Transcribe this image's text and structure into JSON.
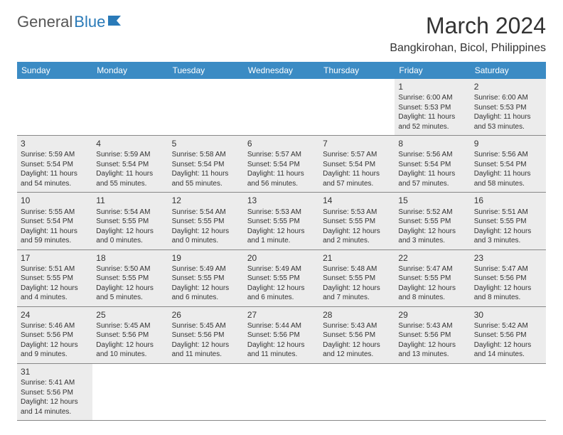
{
  "logo": {
    "general": "General",
    "blue": "Blue"
  },
  "title": {
    "month": "March 2024",
    "location": "Bangkirohan, Bicol, Philippines"
  },
  "colors": {
    "header_bg": "#3b8bc4",
    "header_fg": "#ffffff",
    "cell_bg": "#ececec",
    "text": "#333333",
    "logo_grey": "#555555",
    "logo_blue": "#2a7ab8",
    "border": "#888888"
  },
  "columns": [
    "Sunday",
    "Monday",
    "Tuesday",
    "Wednesday",
    "Thursday",
    "Friday",
    "Saturday"
  ],
  "rows": [
    [
      null,
      null,
      null,
      null,
      null,
      {
        "n": "1",
        "sr": "Sunrise: 6:00 AM",
        "ss": "Sunset: 5:53 PM",
        "dl": "Daylight: 11 hours and 52 minutes."
      },
      {
        "n": "2",
        "sr": "Sunrise: 6:00 AM",
        "ss": "Sunset: 5:53 PM",
        "dl": "Daylight: 11 hours and 53 minutes."
      }
    ],
    [
      {
        "n": "3",
        "sr": "Sunrise: 5:59 AM",
        "ss": "Sunset: 5:54 PM",
        "dl": "Daylight: 11 hours and 54 minutes."
      },
      {
        "n": "4",
        "sr": "Sunrise: 5:59 AM",
        "ss": "Sunset: 5:54 PM",
        "dl": "Daylight: 11 hours and 55 minutes."
      },
      {
        "n": "5",
        "sr": "Sunrise: 5:58 AM",
        "ss": "Sunset: 5:54 PM",
        "dl": "Daylight: 11 hours and 55 minutes."
      },
      {
        "n": "6",
        "sr": "Sunrise: 5:57 AM",
        "ss": "Sunset: 5:54 PM",
        "dl": "Daylight: 11 hours and 56 minutes."
      },
      {
        "n": "7",
        "sr": "Sunrise: 5:57 AM",
        "ss": "Sunset: 5:54 PM",
        "dl": "Daylight: 11 hours and 57 minutes."
      },
      {
        "n": "8",
        "sr": "Sunrise: 5:56 AM",
        "ss": "Sunset: 5:54 PM",
        "dl": "Daylight: 11 hours and 57 minutes."
      },
      {
        "n": "9",
        "sr": "Sunrise: 5:56 AM",
        "ss": "Sunset: 5:54 PM",
        "dl": "Daylight: 11 hours and 58 minutes."
      }
    ],
    [
      {
        "n": "10",
        "sr": "Sunrise: 5:55 AM",
        "ss": "Sunset: 5:54 PM",
        "dl": "Daylight: 11 hours and 59 minutes."
      },
      {
        "n": "11",
        "sr": "Sunrise: 5:54 AM",
        "ss": "Sunset: 5:55 PM",
        "dl": "Daylight: 12 hours and 0 minutes."
      },
      {
        "n": "12",
        "sr": "Sunrise: 5:54 AM",
        "ss": "Sunset: 5:55 PM",
        "dl": "Daylight: 12 hours and 0 minutes."
      },
      {
        "n": "13",
        "sr": "Sunrise: 5:53 AM",
        "ss": "Sunset: 5:55 PM",
        "dl": "Daylight: 12 hours and 1 minute."
      },
      {
        "n": "14",
        "sr": "Sunrise: 5:53 AM",
        "ss": "Sunset: 5:55 PM",
        "dl": "Daylight: 12 hours and 2 minutes."
      },
      {
        "n": "15",
        "sr": "Sunrise: 5:52 AM",
        "ss": "Sunset: 5:55 PM",
        "dl": "Daylight: 12 hours and 3 minutes."
      },
      {
        "n": "16",
        "sr": "Sunrise: 5:51 AM",
        "ss": "Sunset: 5:55 PM",
        "dl": "Daylight: 12 hours and 3 minutes."
      }
    ],
    [
      {
        "n": "17",
        "sr": "Sunrise: 5:51 AM",
        "ss": "Sunset: 5:55 PM",
        "dl": "Daylight: 12 hours and 4 minutes."
      },
      {
        "n": "18",
        "sr": "Sunrise: 5:50 AM",
        "ss": "Sunset: 5:55 PM",
        "dl": "Daylight: 12 hours and 5 minutes."
      },
      {
        "n": "19",
        "sr": "Sunrise: 5:49 AM",
        "ss": "Sunset: 5:55 PM",
        "dl": "Daylight: 12 hours and 6 minutes."
      },
      {
        "n": "20",
        "sr": "Sunrise: 5:49 AM",
        "ss": "Sunset: 5:55 PM",
        "dl": "Daylight: 12 hours and 6 minutes."
      },
      {
        "n": "21",
        "sr": "Sunrise: 5:48 AM",
        "ss": "Sunset: 5:55 PM",
        "dl": "Daylight: 12 hours and 7 minutes."
      },
      {
        "n": "22",
        "sr": "Sunrise: 5:47 AM",
        "ss": "Sunset: 5:55 PM",
        "dl": "Daylight: 12 hours and 8 minutes."
      },
      {
        "n": "23",
        "sr": "Sunrise: 5:47 AM",
        "ss": "Sunset: 5:56 PM",
        "dl": "Daylight: 12 hours and 8 minutes."
      }
    ],
    [
      {
        "n": "24",
        "sr": "Sunrise: 5:46 AM",
        "ss": "Sunset: 5:56 PM",
        "dl": "Daylight: 12 hours and 9 minutes."
      },
      {
        "n": "25",
        "sr": "Sunrise: 5:45 AM",
        "ss": "Sunset: 5:56 PM",
        "dl": "Daylight: 12 hours and 10 minutes."
      },
      {
        "n": "26",
        "sr": "Sunrise: 5:45 AM",
        "ss": "Sunset: 5:56 PM",
        "dl": "Daylight: 12 hours and 11 minutes."
      },
      {
        "n": "27",
        "sr": "Sunrise: 5:44 AM",
        "ss": "Sunset: 5:56 PM",
        "dl": "Daylight: 12 hours and 11 minutes."
      },
      {
        "n": "28",
        "sr": "Sunrise: 5:43 AM",
        "ss": "Sunset: 5:56 PM",
        "dl": "Daylight: 12 hours and 12 minutes."
      },
      {
        "n": "29",
        "sr": "Sunrise: 5:43 AM",
        "ss": "Sunset: 5:56 PM",
        "dl": "Daylight: 12 hours and 13 minutes."
      },
      {
        "n": "30",
        "sr": "Sunrise: 5:42 AM",
        "ss": "Sunset: 5:56 PM",
        "dl": "Daylight: 12 hours and 14 minutes."
      }
    ],
    [
      {
        "n": "31",
        "sr": "Sunrise: 5:41 AM",
        "ss": "Sunset: 5:56 PM",
        "dl": "Daylight: 12 hours and 14 minutes."
      },
      null,
      null,
      null,
      null,
      null,
      null
    ]
  ]
}
